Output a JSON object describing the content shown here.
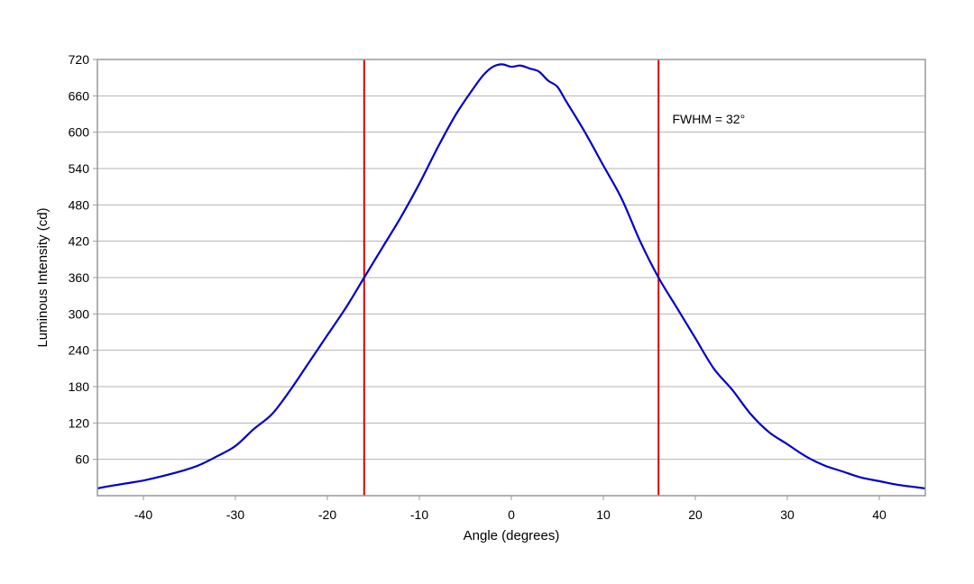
{
  "chart_data": {
    "type": "line",
    "title": "",
    "xlabel": "Angle (degrees)",
    "ylabel": "Luminous Intensity (cd)",
    "xlim": [
      -45,
      45
    ],
    "ylim": [
      0,
      720
    ],
    "x_ticks": [
      -40,
      -30,
      -20,
      -10,
      0,
      10,
      20,
      30,
      40
    ],
    "x_tick_labels": [
      "-40",
      "-30",
      "-20",
      "-10",
      "0",
      "10",
      "20",
      "30",
      "40"
    ],
    "y_ticks": [
      60,
      120,
      180,
      240,
      300,
      360,
      420,
      480,
      540,
      600,
      660,
      720
    ],
    "y_tick_labels": [
      "60",
      "120",
      "180",
      "240",
      "300",
      "360",
      "420",
      "480",
      "540",
      "600",
      "660",
      "720"
    ],
    "grid": "horizontal",
    "series": [
      {
        "color": "#0000cc",
        "x": [
          -45,
          -44,
          -42,
          -40,
          -38,
          -36,
          -34,
          -32,
          -30,
          -28,
          -26,
          -24,
          -22,
          -20,
          -18,
          -16,
          -14,
          -12,
          -10,
          -8,
          -6,
          -4,
          -3,
          -2,
          -1,
          0,
          1,
          2,
          3,
          4,
          5,
          6,
          8,
          10,
          12,
          14,
          16,
          18,
          20,
          22,
          24,
          26,
          28,
          30,
          32,
          34,
          36,
          38,
          40,
          42,
          44,
          45
        ],
        "y": [
          12,
          15,
          20,
          25,
          32,
          40,
          50,
          65,
          82,
          110,
          135,
          175,
          220,
          265,
          310,
          360,
          410,
          460,
          515,
          575,
          630,
          675,
          695,
          708,
          712,
          708,
          710,
          705,
          700,
          685,
          675,
          650,
          600,
          545,
          490,
          420,
          360,
          310,
          260,
          210,
          175,
          135,
          105,
          85,
          65,
          50,
          40,
          30,
          24,
          18,
          14,
          12
        ]
      }
    ],
    "reference_lines": [
      {
        "axis": "x",
        "value": -16,
        "color": "#dd0000"
      },
      {
        "axis": "x",
        "value": 16,
        "color": "#dd0000"
      }
    ],
    "annotations": [
      {
        "text": "FWHM = 32°",
        "x": 17.5,
        "y": 622
      }
    ],
    "colors": {
      "series": "#0000cc",
      "reference": "#dd0000",
      "grid": "#b3b3b3",
      "frame": "#999999"
    }
  }
}
